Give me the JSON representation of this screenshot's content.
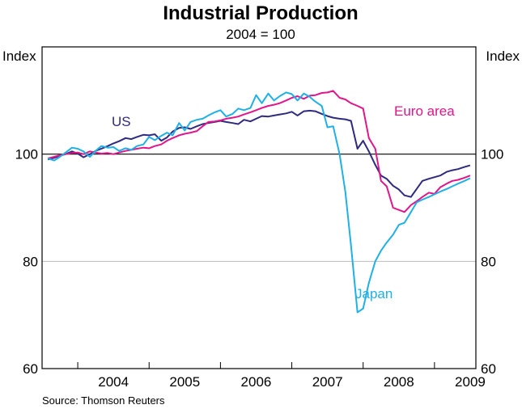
{
  "chart_data": {
    "type": "line",
    "title": "Industrial Production",
    "subtitle": "2004 = 100",
    "ylabel_left": "Index",
    "ylabel_right": "Index",
    "ylim": [
      60,
      120
    ],
    "yticks": [
      60,
      80,
      100
    ],
    "ytick_labels": [
      "60",
      "80",
      "100"
    ],
    "xlim": [
      2003.5,
      2009.58
    ],
    "x_categories": [
      "2004",
      "2005",
      "2006",
      "2007",
      "2008",
      "2009"
    ],
    "reference_line": 100,
    "grid": "horizontal",
    "source": "Source: Thomson Reuters",
    "series": [
      {
        "name": "US",
        "color": "#2e2a7e",
        "x": [
          2003.58,
          2003.67,
          2003.75,
          2003.83,
          2003.92,
          2004.0,
          2004.08,
          2004.17,
          2004.25,
          2004.33,
          2004.42,
          2004.5,
          2004.58,
          2004.67,
          2004.75,
          2004.83,
          2004.92,
          2005.0,
          2005.08,
          2005.17,
          2005.25,
          2005.33,
          2005.42,
          2005.5,
          2005.58,
          2005.67,
          2005.75,
          2005.83,
          2005.92,
          2006.0,
          2006.08,
          2006.17,
          2006.25,
          2006.33,
          2006.42,
          2006.5,
          2006.58,
          2006.67,
          2006.75,
          2006.83,
          2006.92,
          2007.0,
          2007.08,
          2007.17,
          2007.25,
          2007.33,
          2007.42,
          2007.5,
          2007.58,
          2007.67,
          2007.75,
          2007.83,
          2007.92,
          2008.0,
          2008.08,
          2008.17,
          2008.25,
          2008.33,
          2008.42,
          2008.5,
          2008.58,
          2008.67,
          2008.75,
          2008.83,
          2008.92,
          2009.0,
          2009.08,
          2009.17,
          2009.25,
          2009.33,
          2009.42,
          2009.5
        ],
        "values": [
          99.0,
          99.3,
          99.7,
          100.0,
          100.5,
          100.1,
          99.4,
          100.0,
          100.6,
          101.0,
          101.5,
          102.0,
          102.4,
          103.0,
          102.8,
          103.2,
          103.6,
          103.5,
          103.7,
          102.5,
          103.1,
          104.2,
          104.9,
          105.0,
          104.7,
          105.2,
          105.6,
          105.8,
          106.0,
          106.2,
          106.0,
          105.8,
          105.6,
          106.4,
          106.1,
          106.6,
          107.1,
          107.0,
          107.2,
          107.4,
          107.6,
          107.9,
          107.2,
          108.0,
          108.1,
          108.0,
          107.5,
          107.1,
          106.8,
          106.6,
          106.5,
          106.2,
          101.0,
          102.5,
          100.5,
          98.0,
          96.0,
          95.4,
          94.1,
          93.4,
          92.3,
          92.0,
          93.5,
          95.0,
          95.4,
          95.7,
          96.0,
          96.7,
          97.0,
          97.2,
          97.6,
          97.9
        ]
      },
      {
        "name": "Euro area",
        "color": "#e0168a",
        "x": [
          2003.58,
          2003.67,
          2003.75,
          2003.83,
          2003.92,
          2004.0,
          2004.08,
          2004.17,
          2004.25,
          2004.33,
          2004.42,
          2004.5,
          2004.58,
          2004.67,
          2004.75,
          2004.83,
          2004.92,
          2005.0,
          2005.08,
          2005.17,
          2005.25,
          2005.33,
          2005.42,
          2005.5,
          2005.58,
          2005.67,
          2005.75,
          2005.83,
          2005.92,
          2006.0,
          2006.08,
          2006.17,
          2006.25,
          2006.33,
          2006.42,
          2006.5,
          2006.58,
          2006.67,
          2006.75,
          2006.83,
          2006.92,
          2007.0,
          2007.08,
          2007.17,
          2007.25,
          2007.33,
          2007.42,
          2007.5,
          2007.58,
          2007.67,
          2007.75,
          2007.83,
          2007.92,
          2008.0,
          2008.08,
          2008.17,
          2008.25,
          2008.33,
          2008.42,
          2008.5,
          2008.58,
          2008.67,
          2008.75,
          2008.83,
          2008.92,
          2009.0,
          2009.08,
          2009.17,
          2009.25,
          2009.33,
          2009.42,
          2009.5
        ],
        "values": [
          99.2,
          99.5,
          99.8,
          100.0,
          100.2,
          100.3,
          100.0,
          100.5,
          100.3,
          100.1,
          100.2,
          100.0,
          100.3,
          100.6,
          100.8,
          101.0,
          101.2,
          101.1,
          101.5,
          101.8,
          102.5,
          103.0,
          103.5,
          103.8,
          104.0,
          104.3,
          105.2,
          106.0,
          106.1,
          106.3,
          106.6,
          106.8,
          107.0,
          107.4,
          107.8,
          108.2,
          108.6,
          109.0,
          109.2,
          109.5,
          110.0,
          110.5,
          110.8,
          110.3,
          110.9,
          111.0,
          111.4,
          111.5,
          111.8,
          110.5,
          110.2,
          109.5,
          109.0,
          108.5,
          103.0,
          101.0,
          95.0,
          94.0,
          90.0,
          89.6,
          89.2,
          90.5,
          91.2,
          92.0,
          92.8,
          92.6,
          93.8,
          94.5,
          95.0,
          95.2,
          95.6,
          96.0
        ]
      },
      {
        "name": "Japan",
        "color": "#1fb0e6",
        "x": [
          2003.58,
          2003.67,
          2003.75,
          2003.83,
          2003.92,
          2004.0,
          2004.08,
          2004.17,
          2004.25,
          2004.33,
          2004.42,
          2004.5,
          2004.58,
          2004.67,
          2004.75,
          2004.83,
          2004.92,
          2005.0,
          2005.08,
          2005.17,
          2005.25,
          2005.33,
          2005.42,
          2005.5,
          2005.58,
          2005.67,
          2005.75,
          2005.83,
          2005.92,
          2006.0,
          2006.08,
          2006.17,
          2006.25,
          2006.33,
          2006.42,
          2006.5,
          2006.58,
          2006.67,
          2006.75,
          2006.83,
          2006.92,
          2007.0,
          2007.08,
          2007.17,
          2007.25,
          2007.33,
          2007.42,
          2007.5,
          2007.58,
          2007.67,
          2007.75,
          2007.83,
          2007.92,
          2008.0,
          2008.08,
          2008.17,
          2008.25,
          2008.33,
          2008.42,
          2008.5,
          2008.58,
          2008.67,
          2008.75,
          2008.83,
          2008.92,
          2009.0,
          2009.08,
          2009.17,
          2009.25,
          2009.33,
          2009.42,
          2009.5
        ],
        "values": [
          99.2,
          98.8,
          99.5,
          100.3,
          101.2,
          101.0,
          100.5,
          99.5,
          100.6,
          101.5,
          101.2,
          101.3,
          100.6,
          101.1,
          100.8,
          101.5,
          101.8,
          103.2,
          102.6,
          103.4,
          104.0,
          103.5,
          105.8,
          104.4,
          106.0,
          106.4,
          106.6,
          107.2,
          107.8,
          108.2,
          107.0,
          107.5,
          108.5,
          108.2,
          108.6,
          111.0,
          109.5,
          111.3,
          110.0,
          110.8,
          111.5,
          111.2,
          110.0,
          111.3,
          110.7,
          109.8,
          109.0,
          105.0,
          105.2,
          100.0,
          93.0,
          83.0,
          70.5,
          71.2,
          76.0,
          80.0,
          82.0,
          83.5,
          85.0,
          86.8,
          87.2,
          89.2,
          91.0,
          91.5,
          92.0,
          92.5,
          93.0,
          93.5,
          94.0,
          94.5,
          95.0,
          95.5
        ]
      }
    ],
    "annotations": [
      {
        "text": "US",
        "series": "US"
      },
      {
        "text": "Euro area",
        "series": "Euro area"
      },
      {
        "text": "Japan",
        "series": "Japan"
      }
    ]
  }
}
